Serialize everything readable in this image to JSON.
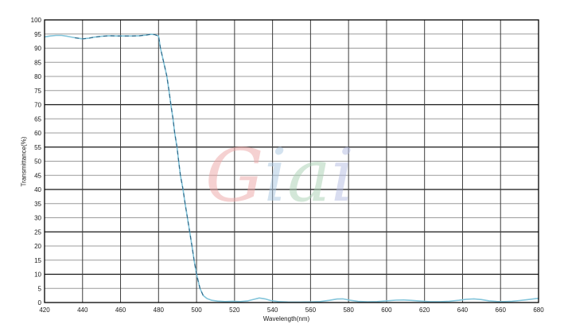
{
  "watermark": {
    "text": "Giai",
    "opacity": 0.5,
    "letters": [
      {
        "char": "G",
        "color": "#eda4a4"
      },
      {
        "char": "i",
        "color": "#a9c6e0"
      },
      {
        "char": "a",
        "color": "#a8d0b2"
      },
      {
        "char": "i",
        "color": "#b4bce2"
      }
    ]
  },
  "colors": {
    "background": "#ffffff",
    "plot_border": "#000000",
    "grid_minor": "#9c9c9c",
    "grid_major": "#141414",
    "grid_vertical": "#3c3c3c",
    "tick_label": "#1a1a1a",
    "curve": "#82c4da",
    "curve_dash_overlay": "#2d6585"
  },
  "chart_data": {
    "type": "line",
    "title": "",
    "xlabel": "Wavelength(nm)",
    "ylabel": "Transmittance(%)",
    "xlim": [
      420,
      680
    ],
    "ylim": [
      0,
      100
    ],
    "x_ticks": [
      420,
      440,
      460,
      480,
      500,
      520,
      540,
      560,
      580,
      600,
      620,
      640,
      660,
      680
    ],
    "y_ticks": [
      0,
      5,
      10,
      15,
      20,
      25,
      30,
      35,
      40,
      45,
      50,
      55,
      60,
      65,
      70,
      75,
      80,
      85,
      90,
      95,
      100
    ],
    "y_major_lines": [
      10,
      25,
      40,
      55,
      70
    ],
    "grid": true,
    "legend_position": "none",
    "series": [
      {
        "name": "transmittance",
        "dashed_overlay_range": [
          436,
          504
        ],
        "points": [
          [
            420,
            94.0
          ],
          [
            423,
            94.3
          ],
          [
            426,
            94.5
          ],
          [
            429,
            94.5
          ],
          [
            432,
            94.2
          ],
          [
            436,
            93.7
          ],
          [
            440,
            93.3
          ],
          [
            443,
            93.5
          ],
          [
            446,
            93.9
          ],
          [
            450,
            94.2
          ],
          [
            454,
            94.4
          ],
          [
            458,
            94.3
          ],
          [
            462,
            94.3
          ],
          [
            466,
            94.3
          ],
          [
            470,
            94.4
          ],
          [
            473,
            94.6
          ],
          [
            476,
            94.9
          ],
          [
            478,
            94.8
          ],
          [
            480,
            94.3
          ],
          [
            481,
            90
          ],
          [
            482.7,
            85
          ],
          [
            484.4,
            80
          ],
          [
            485.5,
            75
          ],
          [
            486.5,
            70
          ],
          [
            487.6,
            65
          ],
          [
            488.5,
            60
          ],
          [
            489.7,
            55
          ],
          [
            490.6,
            50
          ],
          [
            491.5,
            45
          ],
          [
            492.9,
            40
          ],
          [
            494,
            35
          ],
          [
            495.2,
            30
          ],
          [
            496.4,
            25
          ],
          [
            497.6,
            20
          ],
          [
            498.7,
            15
          ],
          [
            500,
            10
          ],
          [
            501.8,
            5
          ],
          [
            503.5,
            2.5
          ],
          [
            505.5,
            1.4
          ],
          [
            508,
            0.8
          ],
          [
            511,
            0.5
          ],
          [
            515,
            0.35
          ],
          [
            519,
            0.45
          ],
          [
            523,
            0.35
          ],
          [
            527,
            0.6
          ],
          [
            530,
            1.1
          ],
          [
            533,
            1.6
          ],
          [
            536,
            1.3
          ],
          [
            539,
            0.7
          ],
          [
            543,
            0.35
          ],
          [
            548,
            0.2
          ],
          [
            554,
            0.18
          ],
          [
            560,
            0.22
          ],
          [
            565,
            0.35
          ],
          [
            570,
            0.8
          ],
          [
            574,
            1.25
          ],
          [
            577,
            1.3
          ],
          [
            581,
            0.8
          ],
          [
            585,
            0.4
          ],
          [
            590,
            0.25
          ],
          [
            595,
            0.35
          ],
          [
            600,
            0.6
          ],
          [
            605,
            0.85
          ],
          [
            609,
            0.9
          ],
          [
            613,
            0.75
          ],
          [
            618,
            0.5
          ],
          [
            623,
            0.32
          ],
          [
            628,
            0.3
          ],
          [
            633,
            0.45
          ],
          [
            638,
            0.8
          ],
          [
            642,
            1.15
          ],
          [
            646,
            1.3
          ],
          [
            650,
            1.05
          ],
          [
            654,
            0.6
          ],
          [
            658,
            0.38
          ],
          [
            662,
            0.35
          ],
          [
            666,
            0.45
          ],
          [
            670,
            0.7
          ],
          [
            674,
            1.0
          ],
          [
            677,
            1.25
          ],
          [
            680,
            1.5
          ]
        ]
      }
    ]
  }
}
